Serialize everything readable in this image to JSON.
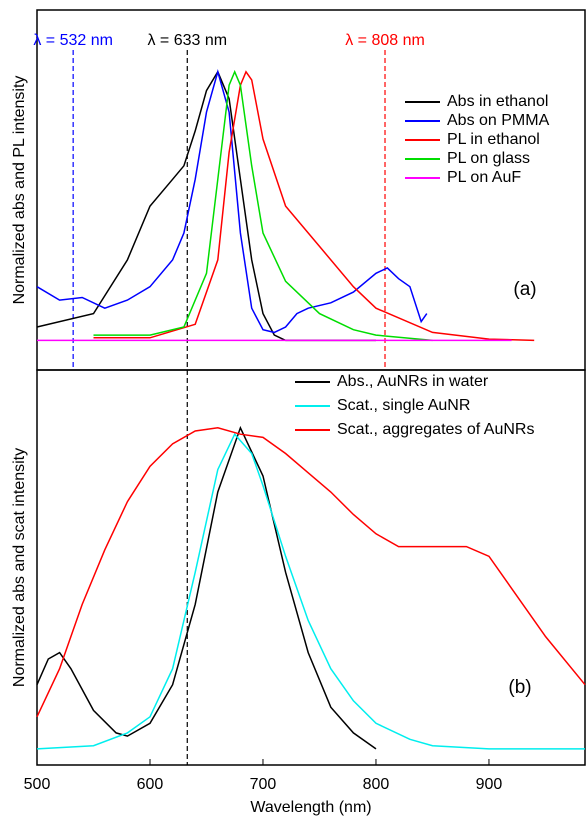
{
  "chart_data": [
    {
      "type": "line",
      "ylabel": "Normalized abs and PL intensity",
      "annotation": "(a)",
      "xlim": [
        500,
        985
      ],
      "ylim": [
        -0.11,
        1.23
      ],
      "legend": "upper right",
      "vlines": [
        {
          "x": 532,
          "color": "#0000ff",
          "label": "λ = 532 nm"
        },
        {
          "x": 633,
          "color": "#000000",
          "label": "λ = 633 nm"
        },
        {
          "x": 808,
          "color": "#ff0000",
          "label": "λ = 808 nm"
        }
      ],
      "series": [
        {
          "name": "Abs in ethanol",
          "color": "#000000",
          "x": [
            500,
            550,
            580,
            600,
            620,
            630,
            640,
            650,
            660,
            670,
            680,
            690,
            700,
            710,
            720,
            800
          ],
          "values": [
            0.05,
            0.1,
            0.3,
            0.5,
            0.6,
            0.65,
            0.78,
            0.93,
            1.0,
            0.9,
            0.6,
            0.3,
            0.1,
            0.02,
            0,
            0
          ]
        },
        {
          "name": "Abs on PMMA",
          "color": "#0000ff",
          "x": [
            500,
            520,
            540,
            560,
            580,
            600,
            620,
            630,
            640,
            650,
            660,
            670,
            680,
            690,
            700,
            710,
            720,
            730,
            740,
            760,
            780,
            800,
            810,
            820,
            830,
            840,
            845
          ],
          "values": [
            0.2,
            0.15,
            0.16,
            0.12,
            0.15,
            0.2,
            0.3,
            0.4,
            0.6,
            0.85,
            1.0,
            0.85,
            0.4,
            0.12,
            0.04,
            0.03,
            0.05,
            0.1,
            0.12,
            0.14,
            0.18,
            0.25,
            0.27,
            0.23,
            0.2,
            0.07,
            0.1
          ]
        },
        {
          "name": "PL in ethanol",
          "color": "#ff0000",
          "x": [
            550,
            600,
            640,
            660,
            670,
            680,
            685,
            690,
            700,
            720,
            750,
            780,
            800,
            850,
            900,
            940
          ],
          "values": [
            0.01,
            0.01,
            0.06,
            0.3,
            0.7,
            0.95,
            1.0,
            0.97,
            0.75,
            0.5,
            0.35,
            0.2,
            0.12,
            0.03,
            0.005,
            0
          ]
        },
        {
          "name": "PL on glass",
          "color": "#00dd00",
          "x": [
            550,
            600,
            630,
            650,
            660,
            670,
            675,
            680,
            690,
            700,
            720,
            750,
            780,
            800,
            850
          ],
          "values": [
            0.02,
            0.02,
            0.05,
            0.25,
            0.6,
            0.95,
            1.0,
            0.95,
            0.65,
            0.4,
            0.22,
            0.1,
            0.04,
            0.02,
            0
          ]
        },
        {
          "name": "PL on AuF",
          "color": "#ff00ff",
          "x": [
            500,
            700,
            920
          ],
          "values": [
            0,
            0,
            0
          ]
        }
      ]
    },
    {
      "type": "line",
      "ylabel": "Normalized abs and scat intensity",
      "xlabel": "Wavelength (nm)",
      "annotation": "(b)",
      "xlim": [
        500,
        985
      ],
      "ylim": [
        -0.05,
        1.18
      ],
      "xticks": [
        500,
        600,
        700,
        800,
        900
      ],
      "legend": "upper right",
      "vlines": [
        {
          "x": 633,
          "color": "#000000"
        }
      ],
      "series": [
        {
          "name": "Abs., AuNRs in water",
          "color": "#000000",
          "x": [
            500,
            510,
            520,
            530,
            550,
            570,
            580,
            600,
            620,
            640,
            660,
            680,
            700,
            720,
            740,
            760,
            780,
            800
          ],
          "values": [
            0.2,
            0.28,
            0.3,
            0.25,
            0.12,
            0.05,
            0.04,
            0.08,
            0.2,
            0.45,
            0.8,
            1.0,
            0.85,
            0.55,
            0.3,
            0.13,
            0.05,
            0
          ]
        },
        {
          "name": "Scat., single AuNR",
          "color": "#00eeee",
          "x": [
            500,
            550,
            580,
            600,
            620,
            640,
            660,
            675,
            690,
            700,
            720,
            740,
            760,
            780,
            800,
            830,
            850,
            900,
            985
          ],
          "values": [
            0,
            0.01,
            0.05,
            0.1,
            0.25,
            0.55,
            0.87,
            0.98,
            0.92,
            0.82,
            0.6,
            0.4,
            0.25,
            0.15,
            0.08,
            0.03,
            0.01,
            0,
            0
          ]
        },
        {
          "name": "Scat., aggregates of AuNRs",
          "color": "#ff0000",
          "x": [
            500,
            520,
            540,
            560,
            580,
            600,
            620,
            640,
            660,
            680,
            700,
            720,
            740,
            760,
            780,
            800,
            820,
            850,
            880,
            900,
            920,
            950,
            985
          ],
          "values": [
            0.1,
            0.25,
            0.45,
            0.62,
            0.77,
            0.88,
            0.95,
            0.99,
            1.0,
            0.98,
            0.97,
            0.92,
            0.86,
            0.8,
            0.73,
            0.67,
            0.63,
            0.63,
            0.63,
            0.6,
            0.5,
            0.35,
            0.2
          ]
        }
      ]
    }
  ]
}
